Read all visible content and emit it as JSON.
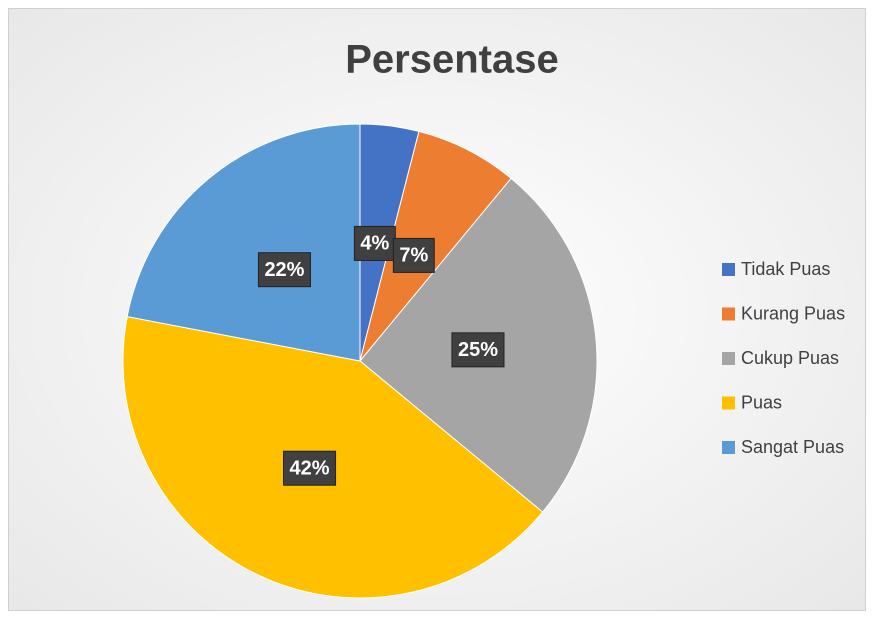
{
  "chart_data": {
    "type": "pie",
    "title": "Persentase",
    "categories": [
      "Tidak Puas",
      "Kurang Puas",
      "Cukup Puas",
      "Puas",
      "Sangat Puas"
    ],
    "values": [
      4,
      7,
      25,
      42,
      22
    ],
    "value_labels": [
      "4%",
      "7%",
      "25%",
      "42%",
      "22%"
    ],
    "colors": [
      "#4472c4",
      "#ed7d31",
      "#a5a5a5",
      "#ffc000",
      "#5b9bd5"
    ],
    "legend": "right"
  }
}
